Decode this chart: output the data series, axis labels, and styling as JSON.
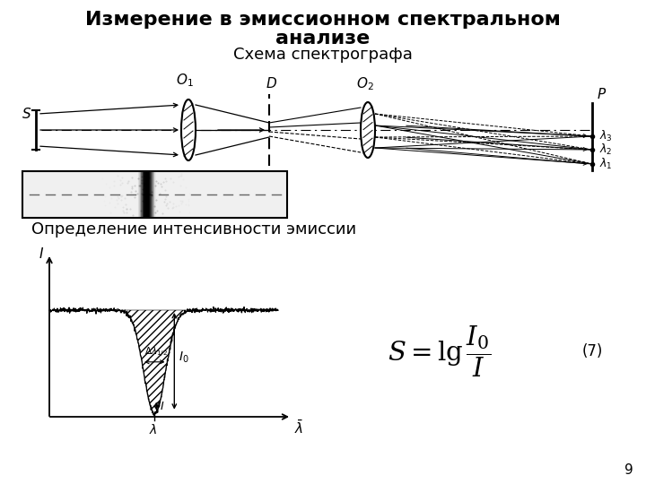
{
  "title_line1": "Измерение в эмиссионном спектральном",
  "title_line2": "анализе",
  "subtitle": "Схема спектрографа",
  "subtitle2": "Определение интенсивности эмиссии",
  "page_number": "9",
  "bg_color": "#ffffff",
  "title_fontsize": 16,
  "subtitle_fontsize": 13,
  "eq_number": "(7)"
}
